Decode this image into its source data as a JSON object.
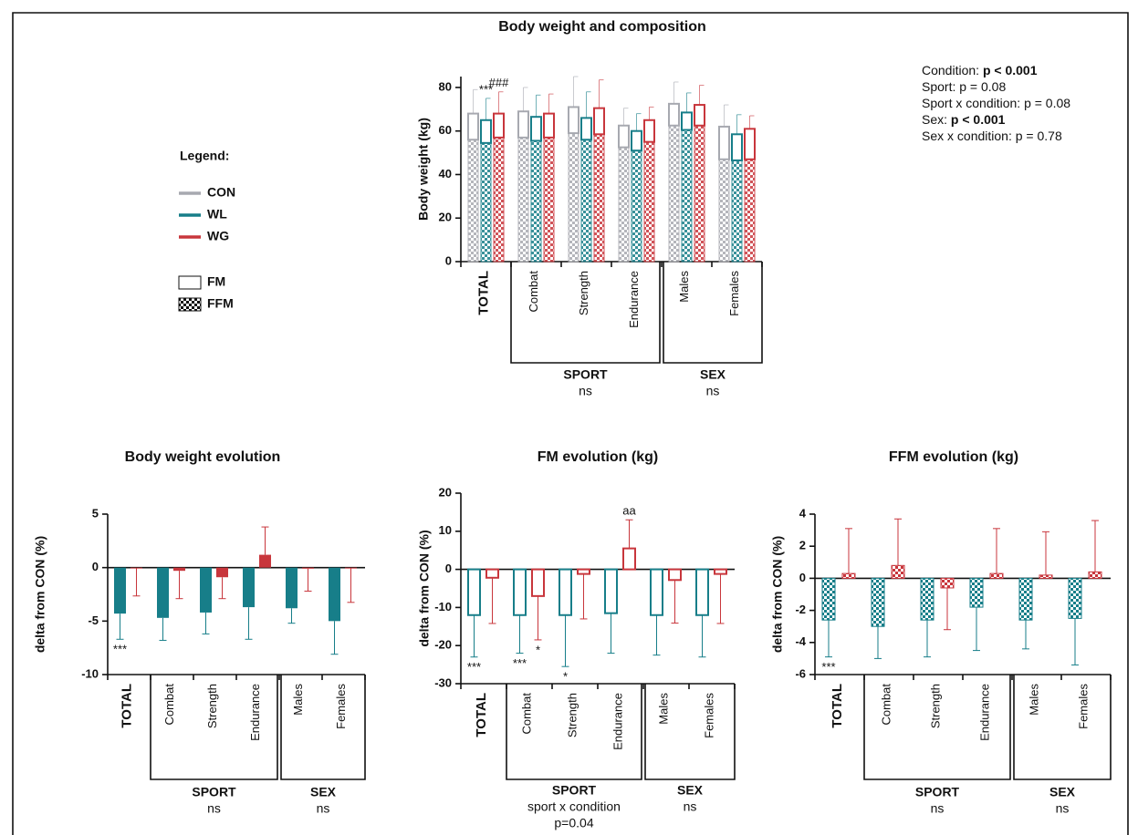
{
  "chart_data": [
    {
      "type": "stacked_bar",
      "title": "Body weight and composition",
      "y_label": "Body weight (kg)",
      "ylim": [
        0,
        85
      ],
      "yticks": [
        0,
        20,
        40,
        60,
        80
      ],
      "categories": [
        "TOTAL",
        "Combat",
        "Strength",
        "Endurance",
        "Males",
        "Females"
      ],
      "bold_categories": [
        0
      ],
      "series": [
        {
          "name": "CON",
          "color": "#a7a9b0",
          "ffm": [
            56,
            57,
            59,
            52.5,
            62.5,
            47
          ],
          "fm": [
            12,
            12,
            12,
            10,
            10,
            15
          ],
          "errors": [
            11,
            11,
            14,
            8,
            10,
            10
          ]
        },
        {
          "name": "WL",
          "color": "#177e89",
          "ffm": [
            54.5,
            55.5,
            56,
            51,
            60.5,
            46.5
          ],
          "fm": [
            10.5,
            11,
            10,
            9,
            8,
            12
          ],
          "errors": [
            10,
            10,
            12,
            8,
            9,
            9
          ]
        },
        {
          "name": "WG",
          "color": "#c8363c",
          "ffm": [
            57,
            57,
            58.5,
            55,
            62.5,
            47
          ],
          "fm": [
            11,
            11,
            12,
            10,
            9.5,
            14
          ],
          "errors": [
            10,
            9,
            13,
            6,
            9,
            6
          ]
        }
      ],
      "segments": {
        "fm": "FM",
        "ffm": "FFM"
      },
      "legend": {
        "title": "Legend:"
      },
      "groups": [
        {
          "name": "SPORT",
          "note": [
            "ns"
          ],
          "span": [
            1,
            3
          ]
        },
        {
          "name": "SEX",
          "note": [
            "ns"
          ],
          "span": [
            4,
            5
          ]
        }
      ],
      "annotations": [
        {
          "text": "***",
          "category": 0,
          "series": 1,
          "where": "above"
        },
        {
          "text": "###",
          "category": 0,
          "series": 2,
          "where": "above"
        }
      ],
      "stats": [
        {
          "label": "Condition:",
          "value": "p < 0.001",
          "bold": true
        },
        {
          "label": "Sport:",
          "value": "p = 0.08",
          "bold": false
        },
        {
          "label": "Sport x condition:",
          "value": "p = 0.08",
          "bold": false
        },
        {
          "label": "Sex:",
          "value": "p < 0.001",
          "bold": true
        },
        {
          "label": "Sex x condition:",
          "value": "p = 0.78",
          "bold": false
        }
      ]
    },
    {
      "type": "bar",
      "title": "Body weight evolution",
      "y_label": "delta from CON (%)",
      "bar_style": "solid",
      "ylim": [
        -10,
        5
      ],
      "yticks": [
        -10,
        -5,
        0,
        5
      ],
      "categories": [
        "TOTAL",
        "Combat",
        "Strength",
        "Endurance",
        "Males",
        "Females"
      ],
      "bold_categories": [
        0
      ],
      "series": [
        {
          "color": "#177e89",
          "values": [
            -4.3,
            -4.7,
            -4.2,
            -3.7,
            -3.8,
            -5.0
          ],
          "errors": [
            2.4,
            2.1,
            2.0,
            3.0,
            1.4,
            3.1
          ]
        },
        {
          "color": "#c8363c",
          "values": [
            -0.05,
            -0.3,
            -0.9,
            1.2,
            -0.1,
            -0.05
          ],
          "errors": [
            2.6,
            2.6,
            2.0,
            2.6,
            2.1,
            3.2
          ]
        }
      ],
      "groups": [
        {
          "name": "SPORT",
          "note": [
            "ns"
          ],
          "span": [
            1,
            3
          ]
        },
        {
          "name": "SEX",
          "note": [
            "ns"
          ],
          "span": [
            4,
            5
          ]
        }
      ],
      "annotations": [
        {
          "text": "***",
          "category": 0,
          "series": 0,
          "where": "below"
        }
      ]
    },
    {
      "type": "bar",
      "title": "FM evolution (kg)",
      "y_label": "delta from CON (%)",
      "bar_style": "open",
      "ylim": [
        -30,
        20
      ],
      "yticks": [
        -30,
        -20,
        -10,
        0,
        10,
        20
      ],
      "categories": [
        "TOTAL",
        "Combat",
        "Strength",
        "Endurance",
        "Males",
        "Females"
      ],
      "bold_categories": [
        0
      ],
      "series": [
        {
          "color": "#177e89",
          "values": [
            -12,
            -12,
            -12,
            -11.5,
            -12,
            -12
          ],
          "errors": [
            11,
            10,
            13.5,
            10.5,
            10.5,
            11
          ]
        },
        {
          "color": "#c8363c",
          "values": [
            -2.2,
            -7,
            -1.2,
            5.5,
            -2.8,
            -1.2
          ],
          "errors": [
            12,
            11.5,
            11.8,
            7.5,
            11.3,
            13
          ]
        }
      ],
      "groups": [
        {
          "name": "SPORT",
          "note": [
            "sport x condition",
            "p=0.04"
          ],
          "span": [
            1,
            3
          ]
        },
        {
          "name": "SEX",
          "note": [
            "ns"
          ],
          "span": [
            4,
            5
          ]
        }
      ],
      "annotations": [
        {
          "text": "***",
          "category": 0,
          "series": 0,
          "where": "below"
        },
        {
          "text": "***",
          "category": 1,
          "series": 0,
          "where": "below"
        },
        {
          "text": "*",
          "category": 1,
          "series": 1,
          "where": "below"
        },
        {
          "text": "*",
          "category": 2,
          "series": 0,
          "where": "below"
        },
        {
          "text": "aa",
          "category": 3,
          "series": 1,
          "where": "above"
        }
      ]
    },
    {
      "type": "bar",
      "title": "FFM evolution (kg)",
      "y_label": "delta from CON (%)",
      "bar_style": "checker",
      "ylim": [
        -6,
        4
      ],
      "yticks": [
        -6,
        -4,
        -2,
        0,
        2,
        4
      ],
      "categories": [
        "TOTAL",
        "Combat",
        "Strength",
        "Endurance",
        "Males",
        "Females"
      ],
      "bold_categories": [
        0
      ],
      "series": [
        {
          "color": "#177e89",
          "values": [
            -2.6,
            -3.0,
            -2.6,
            -1.8,
            -2.6,
            -2.5
          ],
          "errors": [
            2.3,
            2.0,
            2.3,
            2.7,
            1.8,
            2.9
          ]
        },
        {
          "color": "#c8363c",
          "values": [
            0.3,
            0.8,
            -0.6,
            0.3,
            0.2,
            0.4
          ],
          "errors": [
            2.8,
            2.9,
            2.6,
            2.8,
            2.7,
            3.2
          ]
        }
      ],
      "groups": [
        {
          "name": "SPORT",
          "note": [
            "ns"
          ],
          "span": [
            1,
            3
          ]
        },
        {
          "name": "SEX",
          "note": [
            "ns"
          ],
          "span": [
            4,
            5
          ]
        }
      ],
      "annotations": [
        {
          "text": "***",
          "category": 0,
          "series": 0,
          "where": "below"
        }
      ]
    }
  ]
}
